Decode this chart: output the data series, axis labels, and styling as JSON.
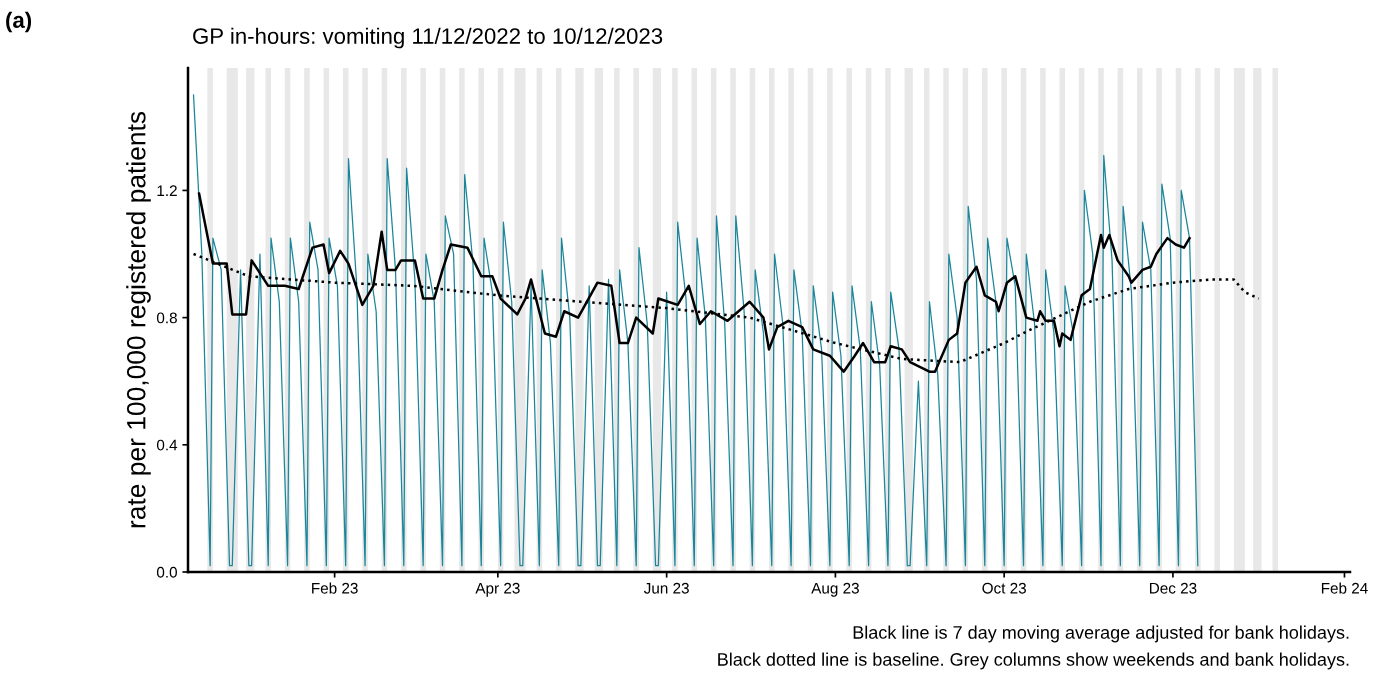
{
  "chart_data": {
    "type": "line",
    "title": "GP in-hours: vomiting 11/12/2022 to 10/12/2023",
    "ylabel": "rate per 100,000 registered patients",
    "annotations": [
      "(a)",
      "Black line is 7 day moving average adjusted for bank holidays.",
      "Black dotted line is baseline. Grey columns show weekends and bank holidays."
    ],
    "xlim": [
      "2022-12-10",
      "2024-02-03"
    ],
    "xticks": [
      {
        "value": "2023-02-01",
        "label": "Feb 23"
      },
      {
        "value": "2023-04-01",
        "label": "Apr 23"
      },
      {
        "value": "2023-06-01",
        "label": "Jun 23"
      },
      {
        "value": "2023-08-01",
        "label": "Aug 23"
      },
      {
        "value": "2023-10-01",
        "label": "Oct 23"
      },
      {
        "value": "2023-12-01",
        "label": "Dec 23"
      },
      {
        "value": "2024-02-01",
        "label": "Feb 24"
      }
    ],
    "ylim": [
      0,
      1.585
    ],
    "yticks": [
      {
        "value": 0,
        "label": "0.0"
      },
      0.4,
      0.8,
      1.2
    ],
    "grid": false,
    "legend": false,
    "series": [
      {
        "color": "#1b869a",
        "line_style": "solid",
        "x": [
          "2022-12-12",
          "2022-12-15",
          "2022-12-18",
          "2022-12-19",
          "2022-12-22",
          "2022-12-25",
          "2022-12-26",
          "2022-12-29",
          "2023-01-01",
          "2023-01-02",
          "2023-01-05",
          "2023-01-08",
          "2023-01-09",
          "2023-01-12",
          "2023-01-15",
          "2023-01-16",
          "2023-01-19",
          "2023-01-22",
          "2023-01-23",
          "2023-01-26",
          "2023-01-29",
          "2023-01-30",
          "2023-02-02",
          "2023-02-05",
          "2023-02-06",
          "2023-02-09",
          "2023-02-12",
          "2023-02-13",
          "2023-02-16",
          "2023-02-19",
          "2023-02-20",
          "2023-02-23",
          "2023-02-26",
          "2023-02-27",
          "2023-03-02",
          "2023-03-05",
          "2023-03-06",
          "2023-03-09",
          "2023-03-12",
          "2023-03-13",
          "2023-03-16",
          "2023-03-19",
          "2023-03-20",
          "2023-03-23",
          "2023-03-26",
          "2023-03-27",
          "2023-03-30",
          "2023-04-02",
          "2023-04-03",
          "2023-04-06",
          "2023-04-09",
          "2023-04-10",
          "2023-04-13",
          "2023-04-16",
          "2023-04-17",
          "2023-04-20",
          "2023-04-23",
          "2023-04-24",
          "2023-04-27",
          "2023-04-30",
          "2023-05-01",
          "2023-05-04",
          "2023-05-07",
          "2023-05-08",
          "2023-05-11",
          "2023-05-14",
          "2023-05-15",
          "2023-05-18",
          "2023-05-21",
          "2023-05-22",
          "2023-05-25",
          "2023-05-28",
          "2023-05-29",
          "2023-06-01",
          "2023-06-04",
          "2023-06-05",
          "2023-06-08",
          "2023-06-11",
          "2023-06-12",
          "2023-06-15",
          "2023-06-18",
          "2023-06-19",
          "2023-06-22",
          "2023-06-25",
          "2023-06-26",
          "2023-06-29",
          "2023-07-02",
          "2023-07-03",
          "2023-07-06",
          "2023-07-09",
          "2023-07-10",
          "2023-07-13",
          "2023-07-16",
          "2023-07-17",
          "2023-07-20",
          "2023-07-23",
          "2023-07-24",
          "2023-07-27",
          "2023-07-30",
          "2023-07-31",
          "2023-08-03",
          "2023-08-06",
          "2023-08-07",
          "2023-08-10",
          "2023-08-13",
          "2023-08-14",
          "2023-08-17",
          "2023-08-20",
          "2023-08-21",
          "2023-08-24",
          "2023-08-27",
          "2023-08-28",
          "2023-08-31",
          "2023-09-03",
          "2023-09-04",
          "2023-09-07",
          "2023-09-10",
          "2023-09-11",
          "2023-09-14",
          "2023-09-17",
          "2023-09-18",
          "2023-09-21",
          "2023-09-24",
          "2023-09-25",
          "2023-09-28",
          "2023-10-01",
          "2023-10-02",
          "2023-10-05",
          "2023-10-08",
          "2023-10-09",
          "2023-10-12",
          "2023-10-15",
          "2023-10-16",
          "2023-10-19",
          "2023-10-22",
          "2023-10-23",
          "2023-10-26",
          "2023-10-29",
          "2023-10-30",
          "2023-11-02",
          "2023-11-05",
          "2023-11-06",
          "2023-11-09",
          "2023-11-12",
          "2023-11-13",
          "2023-11-16",
          "2023-11-19",
          "2023-11-20",
          "2023-11-23",
          "2023-11-26",
          "2023-11-27",
          "2023-11-30",
          "2023-12-03",
          "2023-12-04",
          "2023-12-07",
          "2023-12-10"
        ],
        "values": [
          1.5,
          1.0,
          0.02,
          1.05,
          0.95,
          0.02,
          0.02,
          0.95,
          0.02,
          0.02,
          1.0,
          0.02,
          1.05,
          0.85,
          0.02,
          1.05,
          0.85,
          0.02,
          1.1,
          0.95,
          0.02,
          1.05,
          0.9,
          0.02,
          1.3,
          0.9,
          0.02,
          1.0,
          0.82,
          0.02,
          1.3,
          0.95,
          0.02,
          1.27,
          0.92,
          0.02,
          1.0,
          0.85,
          0.02,
          1.12,
          1.0,
          0.02,
          1.25,
          0.97,
          0.02,
          1.05,
          0.88,
          0.02,
          1.1,
          0.85,
          0.02,
          0.02,
          0.9,
          0.02,
          0.95,
          0.72,
          0.02,
          1.05,
          0.8,
          0.02,
          0.02,
          0.9,
          0.02,
          0.02,
          0.92,
          0.02,
          0.95,
          0.72,
          0.02,
          1.02,
          0.78,
          0.02,
          0.02,
          0.88,
          0.02,
          1.1,
          0.86,
          0.02,
          1.05,
          0.8,
          0.02,
          1.12,
          0.78,
          0.02,
          1.12,
          0.82,
          0.02,
          0.95,
          0.75,
          0.02,
          1.0,
          0.78,
          0.02,
          0.95,
          0.75,
          0.02,
          0.9,
          0.7,
          0.02,
          0.88,
          0.68,
          0.02,
          0.9,
          0.7,
          0.02,
          0.85,
          0.65,
          0.02,
          0.88,
          0.7,
          0.02,
          0.02,
          0.6,
          0.02,
          0.85,
          0.62,
          0.02,
          1.0,
          0.8,
          0.02,
          1.15,
          0.92,
          0.02,
          1.05,
          0.85,
          0.02,
          1.05,
          0.9,
          0.02,
          1.0,
          0.78,
          0.02,
          0.95,
          0.75,
          0.02,
          0.9,
          0.75,
          0.02,
          1.2,
          1.0,
          0.02,
          1.31,
          0.98,
          0.02,
          1.15,
          0.88,
          0.02,
          1.1,
          0.95,
          0.02,
          1.22,
          1.05,
          0.02,
          1.2,
          1.05,
          0.02
        ]
      },
      {
        "color": "#000000",
        "line_style": "solid",
        "x": [
          "2022-12-14",
          "2022-12-19",
          "2022-12-24",
          "2022-12-26",
          "2022-12-31",
          "2023-01-02",
          "2023-01-08",
          "2023-01-14",
          "2023-01-19",
          "2023-01-24",
          "2023-01-28",
          "2023-01-30",
          "2023-02-03",
          "2023-02-06",
          "2023-02-11",
          "2023-02-15",
          "2023-02-18",
          "2023-02-20",
          "2023-02-23",
          "2023-02-25",
          "2023-03-02",
          "2023-03-05",
          "2023-03-09",
          "2023-03-12",
          "2023-03-15",
          "2023-03-21",
          "2023-03-26",
          "2023-03-30",
          "2023-04-02",
          "2023-04-08",
          "2023-04-11",
          "2023-04-13",
          "2023-04-18",
          "2023-04-22",
          "2023-04-25",
          "2023-04-30",
          "2023-05-07",
          "2023-05-12",
          "2023-05-15",
          "2023-05-18",
          "2023-05-21",
          "2023-05-27",
          "2023-05-29",
          "2023-06-05",
          "2023-06-09",
          "2023-06-13",
          "2023-06-17",
          "2023-06-23",
          "2023-06-27",
          "2023-07-01",
          "2023-07-06",
          "2023-07-08",
          "2023-07-11",
          "2023-07-15",
          "2023-07-20",
          "2023-07-24",
          "2023-07-30",
          "2023-08-04",
          "2023-08-08",
          "2023-08-11",
          "2023-08-15",
          "2023-08-19",
          "2023-08-21",
          "2023-08-25",
          "2023-08-28",
          "2023-09-04",
          "2023-09-06",
          "2023-09-11",
          "2023-09-14",
          "2023-09-17",
          "2023-09-21",
          "2023-09-24",
          "2023-09-28",
          "2023-09-29",
          "2023-10-02",
          "2023-10-05",
          "2023-10-09",
          "2023-10-13",
          "2023-10-14",
          "2023-10-16",
          "2023-10-19",
          "2023-10-21",
          "2023-10-22",
          "2023-10-25",
          "2023-10-29",
          "2023-11-01",
          "2023-11-05",
          "2023-11-06",
          "2023-11-08",
          "2023-11-11",
          "2023-11-15",
          "2023-11-16",
          "2023-11-20",
          "2023-11-23",
          "2023-11-25",
          "2023-11-29",
          "2023-12-02",
          "2023-12-05",
          "2023-12-07"
        ],
        "values": [
          1.19,
          0.97,
          0.97,
          0.81,
          0.81,
          0.98,
          0.9,
          0.9,
          0.89,
          1.02,
          1.03,
          0.94,
          1.01,
          0.97,
          0.84,
          0.9,
          1.07,
          0.95,
          0.95,
          0.98,
          0.98,
          0.86,
          0.86,
          0.95,
          1.03,
          1.02,
          0.93,
          0.93,
          0.86,
          0.81,
          0.86,
          0.92,
          0.75,
          0.74,
          0.82,
          0.8,
          0.91,
          0.9,
          0.72,
          0.72,
          0.8,
          0.75,
          0.86,
          0.84,
          0.9,
          0.78,
          0.82,
          0.79,
          0.82,
          0.85,
          0.8,
          0.7,
          0.77,
          0.79,
          0.77,
          0.7,
          0.68,
          0.63,
          0.68,
          0.72,
          0.66,
          0.66,
          0.71,
          0.7,
          0.66,
          0.63,
          0.63,
          0.73,
          0.75,
          0.91,
          0.96,
          0.87,
          0.85,
          0.82,
          0.91,
          0.93,
          0.8,
          0.79,
          0.82,
          0.79,
          0.79,
          0.71,
          0.75,
          0.73,
          0.87,
          0.89,
          1.06,
          1.02,
          1.06,
          0.98,
          0.93,
          0.91,
          0.95,
          0.96,
          1.0,
          1.05,
          1.03,
          1.02,
          1.05
        ]
      },
      {
        "color": "#000000",
        "line_style": "dotted",
        "x": [
          "2022-12-12",
          "2023-01-01",
          "2023-02-01",
          "2023-03-01",
          "2023-04-01",
          "2023-05-01",
          "2023-06-01",
          "2023-07-01",
          "2023-08-01",
          "2023-08-25",
          "2023-09-15",
          "2023-10-01",
          "2023-10-10",
          "2023-11-01",
          "2023-11-15",
          "2023-12-01",
          "2023-12-15",
          "2023-12-23",
          "2023-12-27",
          "2024-01-01"
        ],
        "values": [
          1.0,
          0.93,
          0.91,
          0.9,
          0.87,
          0.85,
          0.83,
          0.8,
          0.72,
          0.67,
          0.66,
          0.72,
          0.76,
          0.85,
          0.89,
          0.91,
          0.92,
          0.92,
          0.88,
          0.86
        ]
      }
    ],
    "bands": [
      {
        "axis": "x",
        "from": "2022-12-17",
        "to": "2022-12-19",
        "color": "#e8e8e8"
      },
      {
        "axis": "x",
        "from": "2022-12-24",
        "to": "2022-12-28",
        "color": "#e8e8e8"
      },
      {
        "axis": "x",
        "from": "2022-12-31",
        "to": "2023-01-03",
        "color": "#e8e8e8"
      },
      {
        "axis": "x",
        "from": "2023-01-07",
        "to": "2023-01-09",
        "color": "#e8e8e8"
      },
      {
        "axis": "x",
        "from": "2023-01-14",
        "to": "2023-01-16",
        "color": "#e8e8e8"
      },
      {
        "axis": "x",
        "from": "2023-01-21",
        "to": "2023-01-23",
        "color": "#e8e8e8"
      },
      {
        "axis": "x",
        "from": "2023-01-28",
        "to": "2023-01-30",
        "color": "#e8e8e8"
      },
      {
        "axis": "x",
        "from": "2023-02-04",
        "to": "2023-02-06",
        "color": "#e8e8e8"
      },
      {
        "axis": "x",
        "from": "2023-02-11",
        "to": "2023-02-13",
        "color": "#e8e8e8"
      },
      {
        "axis": "x",
        "from": "2023-02-18",
        "to": "2023-02-20",
        "color": "#e8e8e8"
      },
      {
        "axis": "x",
        "from": "2023-02-25",
        "to": "2023-02-27",
        "color": "#e8e8e8"
      },
      {
        "axis": "x",
        "from": "2023-03-04",
        "to": "2023-03-06",
        "color": "#e8e8e8"
      },
      {
        "axis": "x",
        "from": "2023-03-11",
        "to": "2023-03-13",
        "color": "#e8e8e8"
      },
      {
        "axis": "x",
        "from": "2023-03-18",
        "to": "2023-03-20",
        "color": "#e8e8e8"
      },
      {
        "axis": "x",
        "from": "2023-03-25",
        "to": "2023-03-27",
        "color": "#e8e8e8"
      },
      {
        "axis": "x",
        "from": "2023-04-01",
        "to": "2023-04-03",
        "color": "#e8e8e8"
      },
      {
        "axis": "x",
        "from": "2023-04-07",
        "to": "2023-04-11",
        "color": "#e8e8e8"
      },
      {
        "axis": "x",
        "from": "2023-04-15",
        "to": "2023-04-17",
        "color": "#e8e8e8"
      },
      {
        "axis": "x",
        "from": "2023-04-22",
        "to": "2023-04-24",
        "color": "#e8e8e8"
      },
      {
        "axis": "x",
        "from": "2023-04-29",
        "to": "2023-05-02",
        "color": "#e8e8e8"
      },
      {
        "axis": "x",
        "from": "2023-05-06",
        "to": "2023-05-09",
        "color": "#e8e8e8"
      },
      {
        "axis": "x",
        "from": "2023-05-13",
        "to": "2023-05-15",
        "color": "#e8e8e8"
      },
      {
        "axis": "x",
        "from": "2023-05-20",
        "to": "2023-05-22",
        "color": "#e8e8e8"
      },
      {
        "axis": "x",
        "from": "2023-05-27",
        "to": "2023-05-30",
        "color": "#e8e8e8"
      },
      {
        "axis": "x",
        "from": "2023-06-03",
        "to": "2023-06-05",
        "color": "#e8e8e8"
      },
      {
        "axis": "x",
        "from": "2023-06-10",
        "to": "2023-06-12",
        "color": "#e8e8e8"
      },
      {
        "axis": "x",
        "from": "2023-06-17",
        "to": "2023-06-19",
        "color": "#e8e8e8"
      },
      {
        "axis": "x",
        "from": "2023-06-24",
        "to": "2023-06-26",
        "color": "#e8e8e8"
      },
      {
        "axis": "x",
        "from": "2023-07-01",
        "to": "2023-07-03",
        "color": "#e8e8e8"
      },
      {
        "axis": "x",
        "from": "2023-07-08",
        "to": "2023-07-10",
        "color": "#e8e8e8"
      },
      {
        "axis": "x",
        "from": "2023-07-15",
        "to": "2023-07-17",
        "color": "#e8e8e8"
      },
      {
        "axis": "x",
        "from": "2023-07-22",
        "to": "2023-07-24",
        "color": "#e8e8e8"
      },
      {
        "axis": "x",
        "from": "2023-07-29",
        "to": "2023-07-31",
        "color": "#e8e8e8"
      },
      {
        "axis": "x",
        "from": "2023-08-05",
        "to": "2023-08-07",
        "color": "#e8e8e8"
      },
      {
        "axis": "x",
        "from": "2023-08-12",
        "to": "2023-08-14",
        "color": "#e8e8e8"
      },
      {
        "axis": "x",
        "from": "2023-08-19",
        "to": "2023-08-21",
        "color": "#e8e8e8"
      },
      {
        "axis": "x",
        "from": "2023-08-26",
        "to": "2023-08-29",
        "color": "#e8e8e8"
      },
      {
        "axis": "x",
        "from": "2023-09-02",
        "to": "2023-09-04",
        "color": "#e8e8e8"
      },
      {
        "axis": "x",
        "from": "2023-09-09",
        "to": "2023-09-11",
        "color": "#e8e8e8"
      },
      {
        "axis": "x",
        "from": "2023-09-16",
        "to": "2023-09-18",
        "color": "#e8e8e8"
      },
      {
        "axis": "x",
        "from": "2023-09-23",
        "to": "2023-09-25",
        "color": "#e8e8e8"
      },
      {
        "axis": "x",
        "from": "2023-09-30",
        "to": "2023-10-02",
        "color": "#e8e8e8"
      },
      {
        "axis": "x",
        "from": "2023-10-07",
        "to": "2023-10-09",
        "color": "#e8e8e8"
      },
      {
        "axis": "x",
        "from": "2023-10-14",
        "to": "2023-10-16",
        "color": "#e8e8e8"
      },
      {
        "axis": "x",
        "from": "2023-10-21",
        "to": "2023-10-23",
        "color": "#e8e8e8"
      },
      {
        "axis": "x",
        "from": "2023-10-28",
        "to": "2023-10-30",
        "color": "#e8e8e8"
      },
      {
        "axis": "x",
        "from": "2023-11-04",
        "to": "2023-11-06",
        "color": "#e8e8e8"
      },
      {
        "axis": "x",
        "from": "2023-11-11",
        "to": "2023-11-13",
        "color": "#e8e8e8"
      },
      {
        "axis": "x",
        "from": "2023-11-18",
        "to": "2023-11-20",
        "color": "#e8e8e8"
      },
      {
        "axis": "x",
        "from": "2023-11-25",
        "to": "2023-11-27",
        "color": "#e8e8e8"
      },
      {
        "axis": "x",
        "from": "2023-12-02",
        "to": "2023-12-04",
        "color": "#e8e8e8"
      },
      {
        "axis": "x",
        "from": "2023-12-09",
        "to": "2023-12-11",
        "color": "#e8e8e8"
      },
      {
        "axis": "x",
        "from": "2023-12-16",
        "to": "2023-12-18",
        "color": "#e8e8e8"
      },
      {
        "axis": "x",
        "from": "2023-12-23",
        "to": "2023-12-27",
        "color": "#e8e8e8"
      },
      {
        "axis": "x",
        "from": "2023-12-30",
        "to": "2024-01-02",
        "color": "#e8e8e8"
      },
      {
        "axis": "x",
        "from": "2024-01-06",
        "to": "2024-01-08",
        "color": "#e8e8e8"
      }
    ]
  }
}
